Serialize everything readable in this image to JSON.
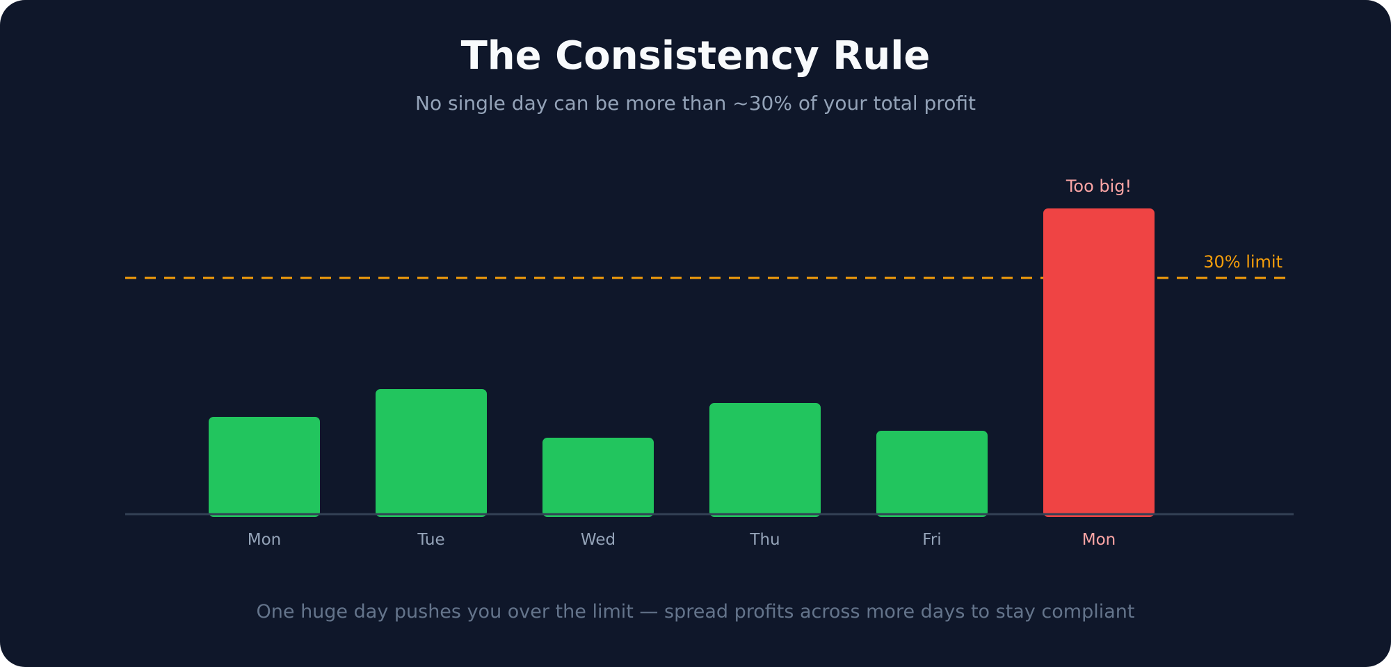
{
  "title": "The Consistency Rule",
  "subtitle": "No single day can be more than ~30% of your total profit",
  "footnote": "One huge day pushes you over the limit — spread profits across more days to stay compliant",
  "colors": {
    "background": "#0f172a",
    "normal_bar": "#22c55e",
    "violation_bar": "#ef4444",
    "limit_line": "#f59e0b",
    "violation_text": "#fca5a5",
    "tick_text": "#94a3b8",
    "baseline": "#334155"
  },
  "chart_data": {
    "type": "bar",
    "categories": [
      "Mon",
      "Tue",
      "Wed",
      "Thu",
      "Fri",
      "Mon"
    ],
    "values": [
      14,
      18,
      11,
      16,
      12,
      44
    ],
    "highlight_index": 5,
    "ylim": [
      0,
      54
    ],
    "grid": false,
    "legend": "none",
    "reference_line": {
      "value": 34,
      "label": "30% limit",
      "style": "dashed"
    },
    "annotations": [
      {
        "text": "Too big!",
        "category_index": 5
      }
    ]
  }
}
